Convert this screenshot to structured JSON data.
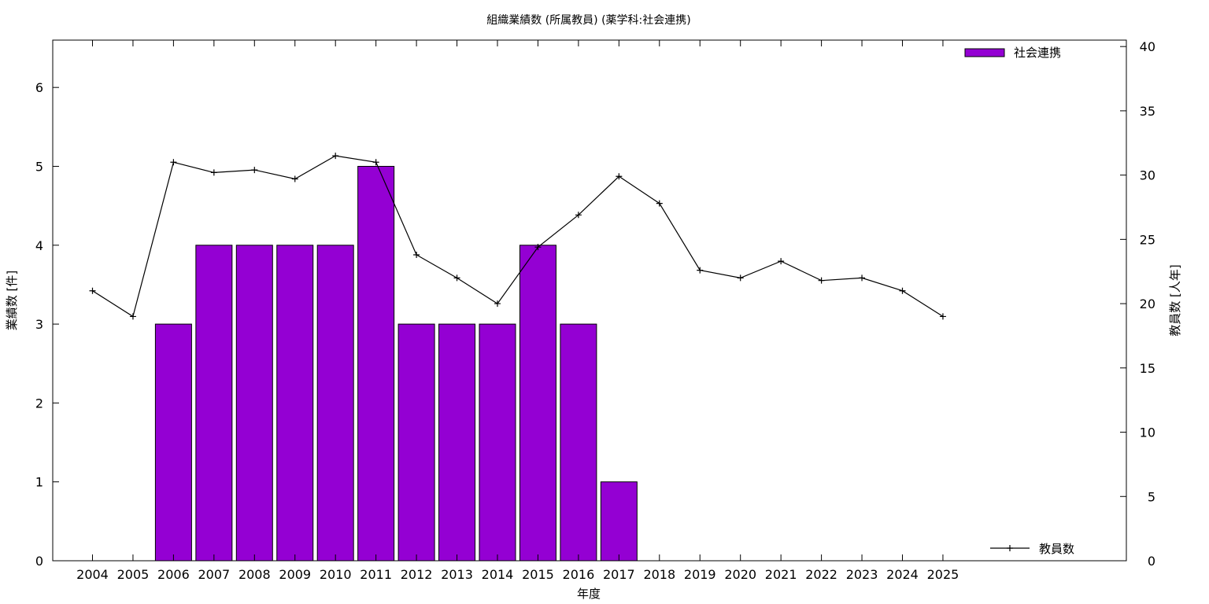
{
  "chart_data": {
    "type": "bar",
    "title": "組織業績数 (所属教員) (薬学科:社会連携)",
    "xlabel": "年度",
    "ylabel": "業績数 [件]",
    "y2label": "教員数 [人年]",
    "categories": [
      "2004",
      "2005",
      "2006",
      "2007",
      "2008",
      "2009",
      "2010",
      "2011",
      "2012",
      "2013",
      "2014",
      "2015",
      "2016",
      "2017",
      "2018",
      "2019",
      "2020",
      "2021",
      "2022",
      "2023",
      "2024",
      "2025"
    ],
    "ylim": [
      0,
      6.6
    ],
    "yticks": [
      0,
      1,
      2,
      3,
      4,
      5,
      6
    ],
    "y2lim": [
      0,
      40.5
    ],
    "y2ticks": [
      0,
      5,
      10,
      15,
      20,
      25,
      30,
      35,
      40
    ],
    "grid": false,
    "series": [
      {
        "name": "社会連携",
        "type": "bar",
        "axis": "left",
        "color": "#9400d3",
        "values": [
          0,
          0,
          3,
          4,
          4,
          4,
          4,
          5,
          3,
          3,
          3,
          4,
          3,
          1,
          0,
          0,
          0,
          0,
          0,
          0,
          0,
          0
        ]
      },
      {
        "name": "教員数",
        "type": "line",
        "axis": "right",
        "color": "#000000",
        "marker": "plus",
        "values": [
          21.0,
          19.0,
          31.0,
          30.2,
          30.4,
          29.7,
          31.5,
          31.0,
          23.8,
          22.0,
          20.0,
          24.4,
          26.9,
          29.9,
          27.8,
          22.6,
          22.0,
          23.3,
          21.8,
          22.0,
          21.0,
          19.0
        ]
      }
    ],
    "legend": {
      "bar_position": "top-right",
      "line_position": "bottom-right"
    }
  }
}
